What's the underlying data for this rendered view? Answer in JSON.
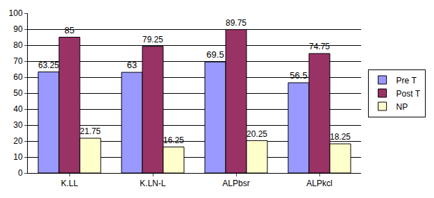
{
  "chart_data": {
    "type": "bar",
    "categories": [
      "K.LL",
      "K.LN-L",
      "ALPbsr",
      "ALPkcl"
    ],
    "series": [
      {
        "name": "Pre T",
        "color": "#9999ff",
        "values": [
          63.25,
          63,
          69.5,
          56.5
        ]
      },
      {
        "name": "Post T",
        "color": "#993366",
        "values": [
          85,
          79.25,
          89.75,
          74.75
        ]
      },
      {
        "name": "NP",
        "color": "#ffffcc",
        "values": [
          21.75,
          16.25,
          20.25,
          18.25
        ]
      }
    ],
    "ylim": [
      0,
      100
    ],
    "yticks": [
      0,
      10,
      20,
      30,
      40,
      50,
      60,
      70,
      80,
      90,
      100
    ],
    "grid": true,
    "legend": "right",
    "data_labels": true
  }
}
